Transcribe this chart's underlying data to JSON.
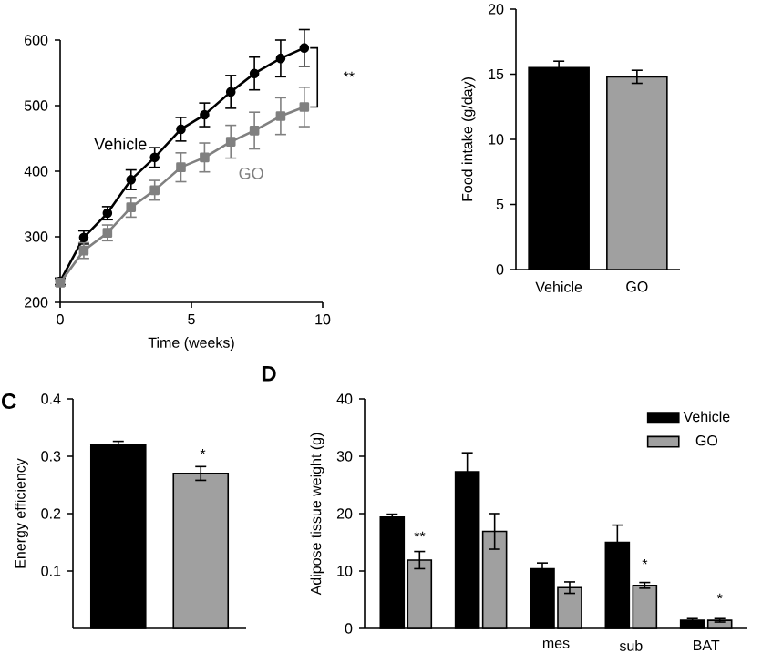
{
  "chart_data": [
    {
      "type": "line",
      "xlabel": "Time (weeks)",
      "x": [
        0,
        0.9,
        1.8,
        2.7,
        3.6,
        4.6,
        5.5,
        6.5,
        7.4,
        8.4,
        9.3
      ],
      "series": [
        {
          "name": "Vehicle",
          "color": "#000000",
          "marker": "circle",
          "values": [
            232,
            299,
            336,
            387,
            421,
            464,
            486,
            521,
            549,
            572,
            588
          ],
          "errors": [
            5,
            10,
            10,
            15,
            15,
            18,
            18,
            25,
            25,
            28,
            28
          ]
        },
        {
          "name": "GO",
          "color": "#808080",
          "marker": "square",
          "values": [
            230,
            279,
            306,
            345,
            371,
            406,
            421,
            445,
            462,
            484,
            498
          ],
          "errors": [
            5,
            12,
            12,
            15,
            15,
            22,
            22,
            25,
            28,
            28,
            30
          ]
        }
      ],
      "xlim": [
        0,
        10
      ],
      "ylim": [
        200,
        600
      ],
      "xticks": [
        0,
        5,
        10
      ],
      "yticks": [
        200,
        300,
        400,
        500,
        600
      ],
      "annotations": [
        "**"
      ]
    },
    {
      "type": "bar",
      "ylabel": "Food intake (g/day)",
      "categories": [
        "Vehicle",
        "GO"
      ],
      "values": [
        15.5,
        14.8
      ],
      "errors": [
        0.5,
        0.5
      ],
      "colors": [
        "#000000",
        "#a0a0a0"
      ],
      "ylim": [
        0,
        20
      ],
      "yticks": [
        0,
        5,
        10,
        15,
        20
      ]
    },
    {
      "type": "bar",
      "ylabel": "Energy efficiency",
      "categories": [
        null,
        null
      ],
      "values": [
        0.32,
        0.27
      ],
      "errors": [
        0.006,
        0.012
      ],
      "colors": [
        "#000000",
        "#a0a0a0"
      ],
      "ylim": [
        0,
        0.4
      ],
      "yticks": [
        0.1,
        0.2,
        0.3,
        0.4
      ],
      "annotations": [
        "C",
        "*"
      ]
    },
    {
      "type": "bar",
      "ylabel": "Adipose tissue weight (g)",
      "categories": [
        null,
        null,
        "mes",
        "sub",
        "BAT"
      ],
      "series": [
        {
          "name": "Vehicle",
          "color": "#000000",
          "values": [
            19.4,
            27.3,
            10.4,
            15.0,
            1.4
          ],
          "errors": [
            0.5,
            3.3,
            1.0,
            3.0,
            0.3
          ]
        },
        {
          "name": "GO",
          "color": "#a0a0a0",
          "values": [
            11.9,
            16.9,
            7.1,
            7.5,
            1.4
          ],
          "errors": [
            1.5,
            3.1,
            1.0,
            0.5,
            0.3
          ]
        }
      ],
      "ylim": [
        0,
        40
      ],
      "yticks": [
        0,
        10,
        20,
        30,
        40
      ],
      "legend": "top right",
      "annotations": [
        "D",
        "**",
        "*",
        "*"
      ]
    }
  ]
}
